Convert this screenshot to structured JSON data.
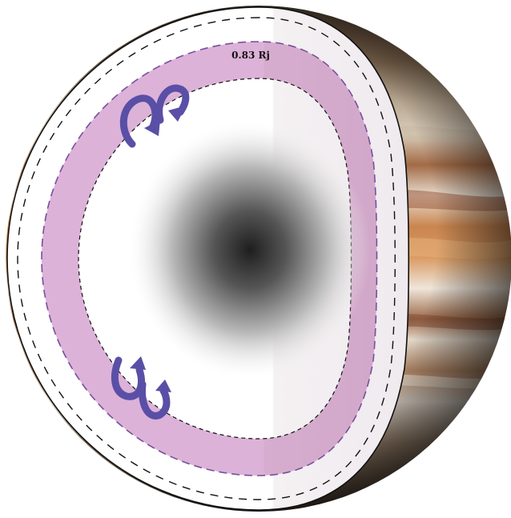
{
  "diagram": {
    "boundary_label": "0.83 Rj",
    "colors": {
      "background": "#ffffff",
      "outline": "#111111",
      "cut_face": "#ffffff",
      "cut_face_shade": "#f5f3f4",
      "layer_fill": "#dcb2d8",
      "layer_dash": "#7a4f9d",
      "arrow": "#5a4fa6",
      "core_center": "#1e1e1e",
      "planet_band_light": "#e9dfd0",
      "planet_band_orange": "#c98450",
      "planet_band_brown": "#8e5a3b"
    },
    "icons": [
      "convection-arrow-icon",
      "convection-arrow-icon"
    ]
  }
}
